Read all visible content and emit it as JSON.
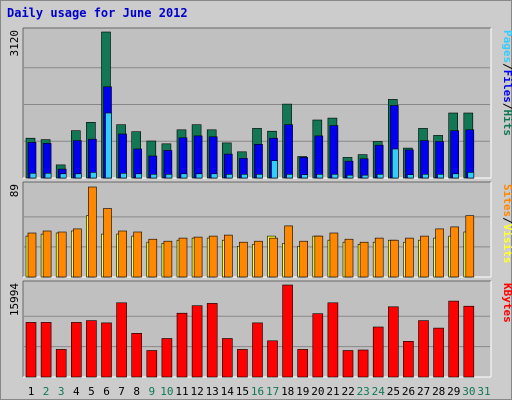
{
  "title": "Daily usage for June 2012",
  "colors": {
    "frame_bg": "#cccccc",
    "panel_bg": "#c0c0c0",
    "grid": "#888888",
    "pages": "#33ccff",
    "files": "#0000ee",
    "hits": "#117755",
    "visits": "#ffff33",
    "sites": "#ff8800",
    "kbytes": "#ff0000",
    "weekday_label": "#000000",
    "weekend_label": "#117755",
    "title": "#0000cc"
  },
  "chart_data": [
    {
      "type": "bar",
      "panel": "hits_files_pages",
      "y_max_label": "3120",
      "ylim": [
        0,
        3120
      ],
      "legend": [
        {
          "name": "Pages",
          "color": "#33ccff"
        },
        {
          "name": "/",
          "color": "#000000"
        },
        {
          "name": "Files",
          "color": "#0000ee"
        },
        {
          "name": "/",
          "color": "#000000"
        },
        {
          "name": "Hits",
          "color": "#117755"
        }
      ],
      "categories": [
        "1",
        "2",
        "3",
        "4",
        "5",
        "6",
        "7",
        "8",
        "9",
        "10",
        "11",
        "12",
        "13",
        "14",
        "15",
        "16",
        "17",
        "18",
        "19",
        "20",
        "21",
        "22",
        "23",
        "24",
        "25",
        "26",
        "27",
        "28",
        "29",
        "30",
        "31"
      ],
      "series": [
        {
          "name": "Hits",
          "values": [
            850,
            820,
            280,
            1010,
            1190,
            3120,
            1140,
            990,
            790,
            730,
            1030,
            1140,
            1030,
            750,
            560,
            1060,
            1000,
            1580,
            460,
            1240,
            1280,
            440,
            500,
            780,
            1680,
            640,
            1060,
            910,
            1390,
            1390,
            0
          ]
        },
        {
          "name": "Files",
          "values": [
            760,
            740,
            190,
            800,
            830,
            1950,
            940,
            620,
            470,
            590,
            860,
            900,
            880,
            510,
            420,
            720,
            850,
            1140,
            440,
            900,
            1120,
            360,
            410,
            700,
            1550,
            600,
            800,
            780,
            1010,
            1030,
            0
          ]
        },
        {
          "name": "Pages",
          "values": [
            100,
            100,
            90,
            90,
            120,
            1390,
            100,
            90,
            80,
            80,
            90,
            90,
            90,
            80,
            80,
            80,
            370,
            80,
            70,
            80,
            80,
            60,
            60,
            80,
            620,
            70,
            80,
            80,
            90,
            120,
            0
          ]
        }
      ]
    },
    {
      "type": "bar",
      "panel": "visits_sites",
      "y_max_label": "89",
      "ylim": [
        0,
        89
      ],
      "legend": [
        {
          "name": "Sites",
          "color": "#ff8800"
        },
        {
          "name": "/",
          "color": "#000000"
        },
        {
          "name": "Visits",
          "color": "#ffff33"
        }
      ],
      "categories": [
        "1",
        "2",
        "3",
        "4",
        "5",
        "6",
        "7",
        "8",
        "9",
        "10",
        "11",
        "12",
        "13",
        "14",
        "15",
        "16",
        "17",
        "18",
        "19",
        "20",
        "21",
        "22",
        "23",
        "24",
        "25",
        "26",
        "27",
        "28",
        "29",
        "30",
        "31"
      ],
      "series": [
        {
          "name": "Visits",
          "values": [
            40,
            42,
            43,
            45,
            60,
            42,
            42,
            40,
            34,
            33,
            36,
            38,
            38,
            36,
            30,
            32,
            40,
            33,
            30,
            40,
            36,
            34,
            32,
            34,
            36,
            34,
            36,
            38,
            40,
            44,
            0
          ]
        },
        {
          "name": "Sites",
          "values": [
            43,
            45,
            44,
            47,
            88,
            67,
            45,
            44,
            37,
            35,
            38,
            39,
            40,
            41,
            34,
            35,
            38,
            50,
            35,
            40,
            43,
            37,
            34,
            38,
            36,
            38,
            40,
            47,
            49,
            60,
            0
          ]
        }
      ]
    },
    {
      "type": "bar",
      "panel": "kbytes",
      "y_max_label": "15994",
      "ylim": [
        0,
        15994
      ],
      "legend": [
        {
          "name": "KBytes",
          "color": "#ff0000"
        }
      ],
      "categories": [
        "1",
        "2",
        "3",
        "4",
        "5",
        "6",
        "7",
        "8",
        "9",
        "10",
        "11",
        "12",
        "13",
        "14",
        "15",
        "16",
        "17",
        "18",
        "19",
        "20",
        "21",
        "22",
        "23",
        "24",
        "25",
        "26",
        "27",
        "28",
        "29",
        "30",
        "31"
      ],
      "series": [
        {
          "name": "KBytes",
          "values": [
            9500,
            9500,
            4800,
            9500,
            9800,
            9400,
            12900,
            7600,
            4600,
            6700,
            11100,
            12400,
            12800,
            6700,
            4800,
            9400,
            6300,
            16000,
            4800,
            11000,
            12900,
            4600,
            4700,
            8700,
            12200,
            6200,
            9800,
            8500,
            13200,
            12300,
            0
          ]
        }
      ]
    }
  ],
  "x_axis": {
    "labels": [
      {
        "text": "1",
        "weekend": false
      },
      {
        "text": "2",
        "weekend": true
      },
      {
        "text": "3",
        "weekend": true
      },
      {
        "text": "4",
        "weekend": false
      },
      {
        "text": "5",
        "weekend": false
      },
      {
        "text": "6",
        "weekend": false
      },
      {
        "text": "7",
        "weekend": false
      },
      {
        "text": "8",
        "weekend": false
      },
      {
        "text": "9",
        "weekend": true
      },
      {
        "text": "10",
        "weekend": true
      },
      {
        "text": "11",
        "weekend": false
      },
      {
        "text": "12",
        "weekend": false
      },
      {
        "text": "13",
        "weekend": false
      },
      {
        "text": "14",
        "weekend": false
      },
      {
        "text": "15",
        "weekend": false
      },
      {
        "text": "16",
        "weekend": true
      },
      {
        "text": "17",
        "weekend": true
      },
      {
        "text": "18",
        "weekend": false
      },
      {
        "text": "19",
        "weekend": false
      },
      {
        "text": "20",
        "weekend": false
      },
      {
        "text": "21",
        "weekend": false
      },
      {
        "text": "22",
        "weekend": false
      },
      {
        "text": "23",
        "weekend": true
      },
      {
        "text": "24",
        "weekend": true
      },
      {
        "text": "25",
        "weekend": false
      },
      {
        "text": "26",
        "weekend": false
      },
      {
        "text": "27",
        "weekend": false
      },
      {
        "text": "28",
        "weekend": false
      },
      {
        "text": "29",
        "weekend": false
      },
      {
        "text": "30",
        "weekend": true
      },
      {
        "text": "31",
        "weekend": true
      }
    ]
  }
}
